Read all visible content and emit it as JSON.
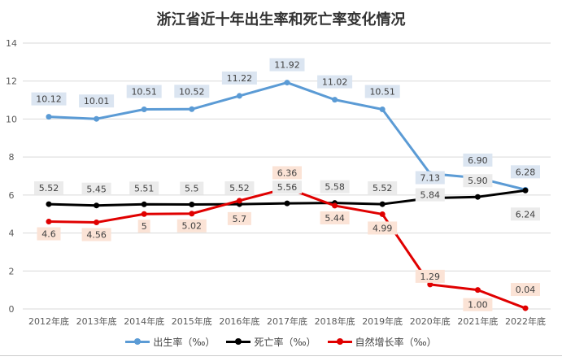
{
  "chart_data": {
    "type": "line",
    "title": "浙江省近十年出生率和死亡率变化情况",
    "categories": [
      "2012年底",
      "2013年底",
      "2014年底",
      "2015年底",
      "2016年底",
      "2017年底",
      "2018年底",
      "2019年底",
      "2020年底",
      "2021年底",
      "2022年底"
    ],
    "ylim": [
      0,
      14
    ],
    "yticks": [
      0,
      2,
      4,
      6,
      8,
      10,
      12,
      14
    ],
    "grid": true,
    "legend_position": "bottom",
    "series": [
      {
        "name": "出生率（‰）",
        "color": "#5b9bd5",
        "label_bg": "#dbe5f1",
        "values": [
          10.12,
          10.01,
          10.51,
          10.52,
          11.22,
          11.92,
          11.02,
          10.51,
          7.13,
          6.9,
          6.28
        ],
        "labels": [
          "10.12",
          "10.01",
          "10.51",
          "10.52",
          "11.22",
          "11.92",
          "11.02",
          "10.51",
          "7.13",
          "6.90",
          "6.28"
        ]
      },
      {
        "name": "死亡率（‰）",
        "color": "#000000",
        "label_bg": "#ebebeb",
        "values": [
          5.52,
          5.45,
          5.51,
          5.5,
          5.52,
          5.56,
          5.58,
          5.52,
          5.84,
          5.9,
          6.24
        ],
        "labels": [
          "5.52",
          "5.45",
          "5.51",
          "5.5",
          "5.52",
          "5.56",
          "5.58",
          "5.52",
          "5.84",
          "5.90",
          "6.24"
        ]
      },
      {
        "name": "自然增长率（‰）",
        "color": "#e00000",
        "label_bg": "#fbe3d6",
        "values": [
          4.6,
          4.56,
          5,
          5.02,
          5.7,
          6.36,
          5.44,
          4.99,
          1.29,
          1.0,
          0.04
        ],
        "labels": [
          "4.6",
          "4.56",
          "5",
          "5.02",
          "5.7",
          "6.36",
          "5.44",
          "4.99",
          "1.29",
          "1.00",
          "0.04"
        ]
      }
    ]
  }
}
